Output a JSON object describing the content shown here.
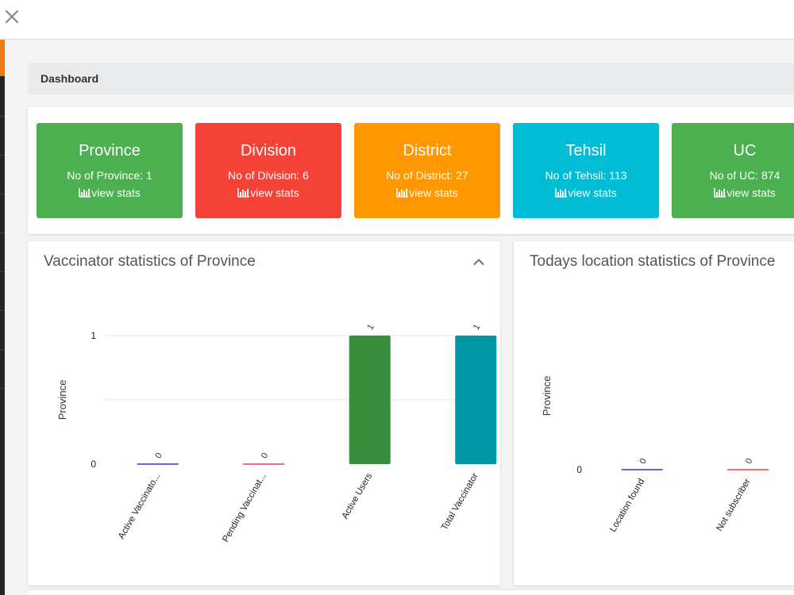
{
  "breadcrumb": {
    "title": "Dashboard"
  },
  "stat_cards": [
    {
      "title": "Province",
      "count_text": "No of Province: 1",
      "link": "view stats",
      "color": "#4caf50"
    },
    {
      "title": "Division",
      "count_text": "No of Division: 6",
      "link": "view stats",
      "color": "#f44336"
    },
    {
      "title": "District",
      "count_text": "No of District: 27",
      "link": "view stats",
      "color": "#ff9800"
    },
    {
      "title": "Tehsil",
      "count_text": "No of Tehsil: 113",
      "link": "view stats",
      "color": "#00bcd4"
    },
    {
      "title": "UC",
      "count_text": "No of UC: 874",
      "link": "view stats",
      "color": "#4caf50"
    }
  ],
  "cards": {
    "vaccinator": {
      "title": "Vaccinator statistics of Province"
    },
    "location": {
      "title": "Todays location statistics of Province"
    }
  },
  "chart_data": [
    {
      "type": "bar",
      "ylabel": "Province",
      "ylim": [
        0,
        1
      ],
      "yticks": [
        "0",
        "1"
      ],
      "categories": [
        "Active Vaccinato...",
        "Pending Vaccinat...",
        "Active Users",
        "Total Vaccinator"
      ],
      "values": [
        0,
        0,
        1,
        1
      ],
      "data_labels": [
        "0",
        "0",
        "1",
        "1"
      ],
      "colors": [
        "#5c6bc0",
        "#e57373",
        "#388e3c",
        "#0097a7"
      ],
      "grid": true
    },
    {
      "type": "bar",
      "ylabel": "Province",
      "yticks": [
        "0"
      ],
      "categories": [
        "Location found",
        "Not subscriber"
      ],
      "values": [
        0,
        0
      ],
      "data_labels": [
        "0",
        "0"
      ],
      "colors": [
        "#5c6bc0",
        "#e57373"
      ],
      "grid": false
    }
  ]
}
